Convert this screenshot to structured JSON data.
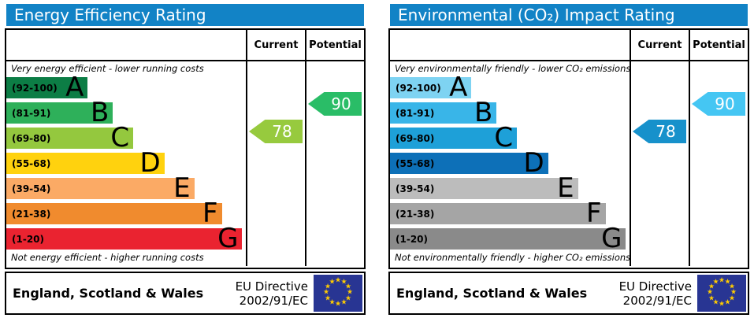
{
  "header_color": "#1283c6",
  "flag": {
    "bg": "#283593",
    "star": "#ffcc00"
  },
  "charts": [
    {
      "title": "Energy Efficiency Rating",
      "columns": {
        "current": "Current",
        "potential": "Potential"
      },
      "top_caption": "Very energy efficient - lower running costs",
      "bottom_caption": "Not energy efficient - higher running costs",
      "bands": [
        {
          "letter": "A",
          "range": "(92-100)",
          "color": "#0c7d45"
        },
        {
          "letter": "B",
          "range": "(81-91)",
          "color": "#2eb05a"
        },
        {
          "letter": "C",
          "range": "(69-80)",
          "color": "#94c83e"
        },
        {
          "letter": "D",
          "range": "(55-68)",
          "color": "#ffd20e"
        },
        {
          "letter": "E",
          "range": "(39-54)",
          "color": "#fbaa65"
        },
        {
          "letter": "F",
          "range": "(21-38)",
          "color": "#f08b2e"
        },
        {
          "letter": "G",
          "range": "(1-20)",
          "color": "#ea2330"
        }
      ],
      "current": {
        "value": "78",
        "band": "C",
        "color": "#97ca3e"
      },
      "potential": {
        "value": "90",
        "band": "B",
        "color": "#2abd67"
      },
      "footer": {
        "region": "England, Scotland & Wales",
        "directive_line1": "EU Directive",
        "directive_line2": "2002/91/EC"
      }
    },
    {
      "title": "Environmental (CO₂) Impact Rating",
      "columns": {
        "current": "Current",
        "potential": "Potential"
      },
      "top_caption": "Very environmentally friendly - lower CO₂ emissions",
      "bottom_caption": "Not environmentally friendly - higher CO₂ emissions",
      "bands": [
        {
          "letter": "A",
          "range": "(92-100)",
          "color": "#7ed3f2"
        },
        {
          "letter": "B",
          "range": "(81-91)",
          "color": "#39b5e8"
        },
        {
          "letter": "C",
          "range": "(69-80)",
          "color": "#1ea0d8"
        },
        {
          "letter": "D",
          "range": "(55-68)",
          "color": "#0d70b8"
        },
        {
          "letter": "E",
          "range": "(39-54)",
          "color": "#bcbcbc"
        },
        {
          "letter": "F",
          "range": "(21-38)",
          "color": "#a5a5a5"
        },
        {
          "letter": "G",
          "range": "(1-20)",
          "color": "#8a8a8a"
        }
      ],
      "current": {
        "value": "78",
        "band": "C",
        "color": "#1791cb"
      },
      "potential": {
        "value": "90",
        "band": "B",
        "color": "#45c6f3"
      },
      "footer": {
        "region": "England, Scotland & Wales",
        "directive_line1": "EU Directive",
        "directive_line2": "2002/91/EC"
      }
    }
  ],
  "chart_data": [
    {
      "type": "bar",
      "title": "Energy Efficiency Rating",
      "categories": [
        "A (92-100)",
        "B (81-91)",
        "C (69-80)",
        "D (55-68)",
        "E (39-54)",
        "F (21-38)",
        "G (1-20)"
      ],
      "series": [
        {
          "name": "Current",
          "values": [
            78
          ],
          "band": "C"
        },
        {
          "name": "Potential",
          "values": [
            90
          ],
          "band": "B"
        }
      ],
      "top_caption": "Very energy efficient - lower running costs",
      "bottom_caption": "Not energy efficient - higher running costs",
      "region": "England, Scotland & Wales",
      "directive": "EU Directive 2002/91/EC",
      "value_range": [
        1,
        100
      ]
    },
    {
      "type": "bar",
      "title": "Environmental (CO₂) Impact Rating",
      "categories": [
        "A (92-100)",
        "B (81-91)",
        "C (69-80)",
        "D (55-68)",
        "E (39-54)",
        "F (21-38)",
        "G (1-20)"
      ],
      "series": [
        {
          "name": "Current",
          "values": [
            78
          ],
          "band": "C"
        },
        {
          "name": "Potential",
          "values": [
            90
          ],
          "band": "B"
        }
      ],
      "top_caption": "Very environmentally friendly - lower CO₂ emissions",
      "bottom_caption": "Not environmentally friendly - higher CO₂ emissions",
      "region": "England, Scotland & Wales",
      "directive": "EU Directive 2002/91/EC",
      "value_range": [
        1,
        100
      ]
    }
  ]
}
